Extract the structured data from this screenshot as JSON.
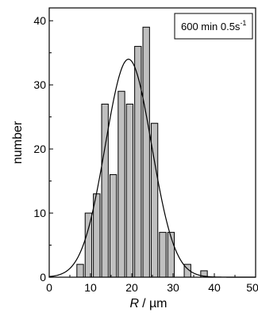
{
  "chart_data": {
    "type": "bar",
    "xlabel_symbol": "R",
    "xlabel_unit": "/ µm",
    "ylabel": "number",
    "xlim": [
      0,
      50
    ],
    "ylim": [
      0,
      42
    ],
    "xticks": [
      0,
      10,
      20,
      30,
      40,
      50
    ],
    "xtick_labels": [
      "0",
      "10",
      "20",
      "30",
      "40",
      "50"
    ],
    "yticks": [
      0,
      10,
      20,
      30,
      40
    ],
    "ytick_labels": [
      "0",
      "10",
      "20",
      "30",
      "40"
    ],
    "bin_width": 1.6,
    "x": [
      7.5,
      9.5,
      11.5,
      13.5,
      15.5,
      17.5,
      19.5,
      21.5,
      23.5,
      25.5,
      27.5,
      29.5,
      31.5,
      33.5,
      35.5,
      37.5
    ],
    "values": [
      2,
      10,
      13,
      27,
      16,
      29,
      27,
      36,
      39,
      24,
      7,
      7,
      0,
      2,
      0,
      1
    ],
    "fit": {
      "type": "gaussian",
      "mean": 19.2,
      "sigma": 5.6,
      "amplitude": 34
    },
    "legend_text": "600 min 0.5s",
    "legend_sup": "-1",
    "legend_position": "top-right",
    "grid": false,
    "colors": {
      "bar_fill": "#c0c0c0",
      "bar_stroke": "#000000",
      "fit_line": "#000000"
    }
  }
}
